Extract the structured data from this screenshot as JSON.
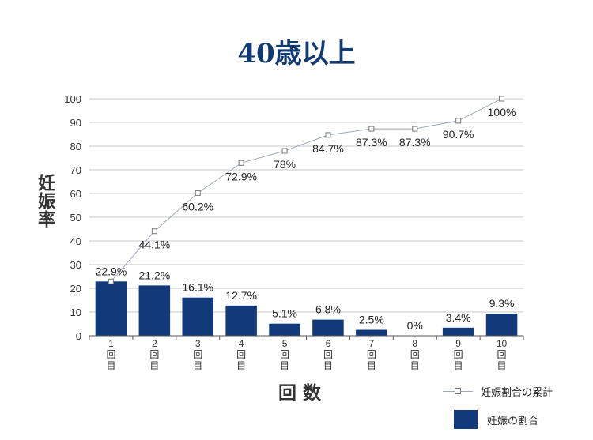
{
  "chart_data": {
    "type": "bar",
    "title": "40歳以上",
    "ylabel": "妊娠率",
    "xlabel": "回数",
    "ylim": [
      0,
      100
    ],
    "yticks": [
      0,
      10,
      20,
      30,
      40,
      50,
      60,
      70,
      80,
      90,
      100
    ],
    "categories": [
      "1回目",
      "2回目",
      "3回目",
      "4回目",
      "5回目",
      "6回目",
      "7回目",
      "8回目",
      "9回目",
      "10回目"
    ],
    "category_numbers": [
      "1",
      "2",
      "3",
      "4",
      "5",
      "6",
      "7",
      "8",
      "9",
      "10"
    ],
    "category_suffix": [
      "回",
      "目"
    ],
    "series": [
      {
        "name": "妊娠の割合",
        "kind": "bar",
        "color": "#123a7a",
        "values": [
          22.9,
          21.2,
          16.1,
          12.7,
          5.1,
          6.8,
          2.5,
          0,
          3.4,
          9.3
        ],
        "labels": [
          "22.9%",
          "21.2%",
          "16.1%",
          "12.7%",
          "5.1%",
          "6.8%",
          "2.5%",
          "0%",
          "3.4%",
          "9.3%"
        ]
      },
      {
        "name": "妊娠割合の累計",
        "kind": "line",
        "color": "#9fa8b8",
        "values": [
          22.9,
          44.1,
          60.2,
          72.9,
          78,
          84.7,
          87.3,
          87.3,
          90.7,
          100
        ],
        "labels": [
          "22.9%",
          "44.1%",
          "60.2%",
          "72.9%",
          "78%",
          "84.7%",
          "87.3%",
          "87.3%",
          "90.7%",
          "100%"
        ]
      }
    ],
    "grid": true,
    "legend_position": "bottom-right"
  }
}
